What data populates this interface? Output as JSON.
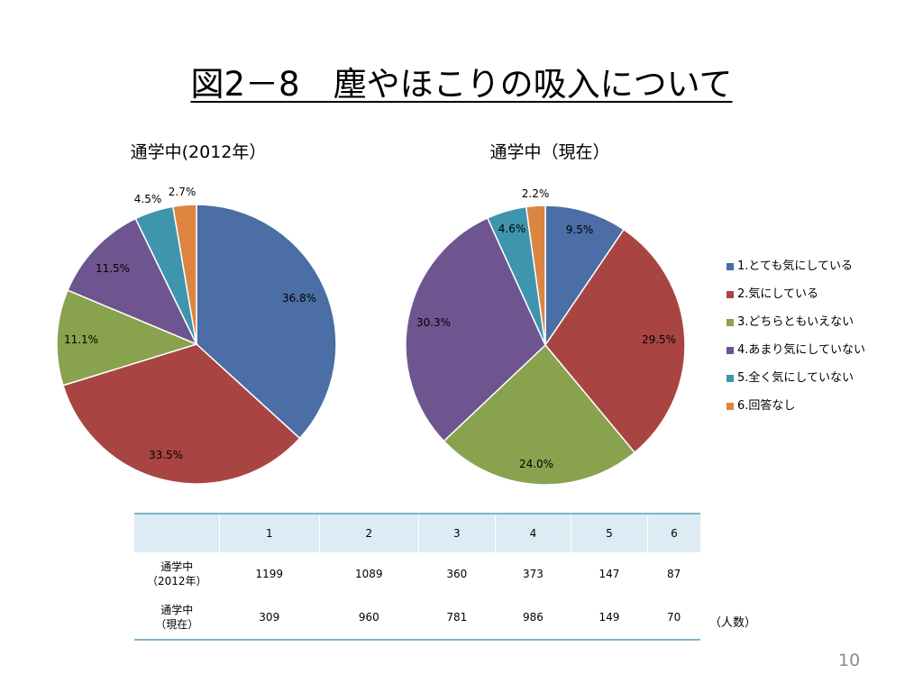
{
  "title": "図2－8　塵やほこりの吸入について",
  "chart_data": [
    {
      "type": "pie",
      "title": "通学中(2012年）",
      "categories": [
        "1.とても気にしている",
        "2.気にしている",
        "3.どちらともいえない",
        "4.あまり気にしていない",
        "5.全く気にしていない",
        "6.回答なし"
      ],
      "values": [
        36.8,
        33.5,
        11.1,
        11.5,
        4.5,
        2.7
      ],
      "labels": [
        "36.8%",
        "33.5%",
        "11.1%",
        "11.5%",
        "4.5%",
        "2.7%"
      ],
      "legend_position": "right"
    },
    {
      "type": "pie",
      "title": "通学中（現在）",
      "categories": [
        "1.とても気にしている",
        "2.気にしている",
        "3.どちらともいえない",
        "4.あまり気にしていない",
        "5.全く気にしていない",
        "6.回答なし"
      ],
      "values": [
        9.5,
        29.5,
        24.0,
        30.3,
        4.6,
        2.2
      ],
      "labels": [
        "9.5%",
        "29.5%",
        "24.0%",
        "30.3%",
        "4.6%",
        "2.2%"
      ],
      "legend_position": "right"
    }
  ],
  "colors": [
    "#4a6ea5",
    "#a84542",
    "#88a24e",
    "#6f558f",
    "#3e95ad",
    "#db8540"
  ],
  "legend": [
    "1.とても気にしている",
    "2.気にしている",
    "3.どちらともいえない",
    "4.あまり気にしていない",
    "5.全く気にしていない",
    "6.回答なし"
  ],
  "table": {
    "headers": [
      "",
      "1",
      "2",
      "3",
      "4",
      "5",
      "6"
    ],
    "rows": [
      {
        "label_line1": "通学中",
        "label_line2": "（2012年）",
        "values": [
          "1199",
          "1089",
          "360",
          "373",
          "147",
          "87"
        ]
      },
      {
        "label_line1": "通学中",
        "label_line2": "（現在）",
        "values": [
          "309",
          "960",
          "781",
          "986",
          "149",
          "70"
        ]
      }
    ]
  },
  "unit_label": "（人数）",
  "page_number": "10"
}
